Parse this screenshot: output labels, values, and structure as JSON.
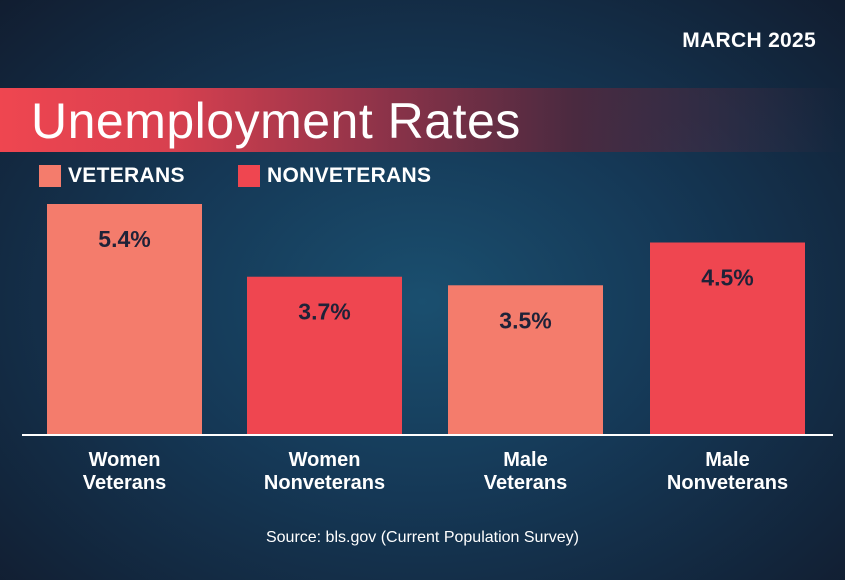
{
  "header": {
    "date": "MARCH 2025",
    "title": "Unemployment Rates"
  },
  "colors": {
    "veterans": "#f47c6c",
    "nonveterans": "#ef4650",
    "value_text": "#1f2238",
    "axis": "#ffffff"
  },
  "chart_data": {
    "type": "bar",
    "title": "Unemployment Rates",
    "categories": [
      "Women Veterans",
      "Women Nonveterans",
      "Male Veterans",
      "Male Nonveterans"
    ],
    "category_lines": [
      [
        "Women",
        "Veterans"
      ],
      [
        "Women",
        "Nonveterans"
      ],
      [
        "Male",
        "Veterans"
      ],
      [
        "Male",
        "Nonveterans"
      ]
    ],
    "values": [
      5.4,
      3.7,
      3.5,
      4.5
    ],
    "value_labels": [
      "5.4%",
      "3.7%",
      "3.5%",
      "4.5%"
    ],
    "groups": [
      "veterans",
      "nonveterans",
      "veterans",
      "nonveterans"
    ],
    "legend": [
      {
        "key": "veterans",
        "label": "VETERANS"
      },
      {
        "key": "nonveterans",
        "label": "NONVETERANS"
      }
    ],
    "legend_position": "top-left",
    "ylim": [
      0,
      5.4
    ],
    "grid": false
  },
  "footer": {
    "source": "Source: bls.gov (Current Population Survey)"
  }
}
